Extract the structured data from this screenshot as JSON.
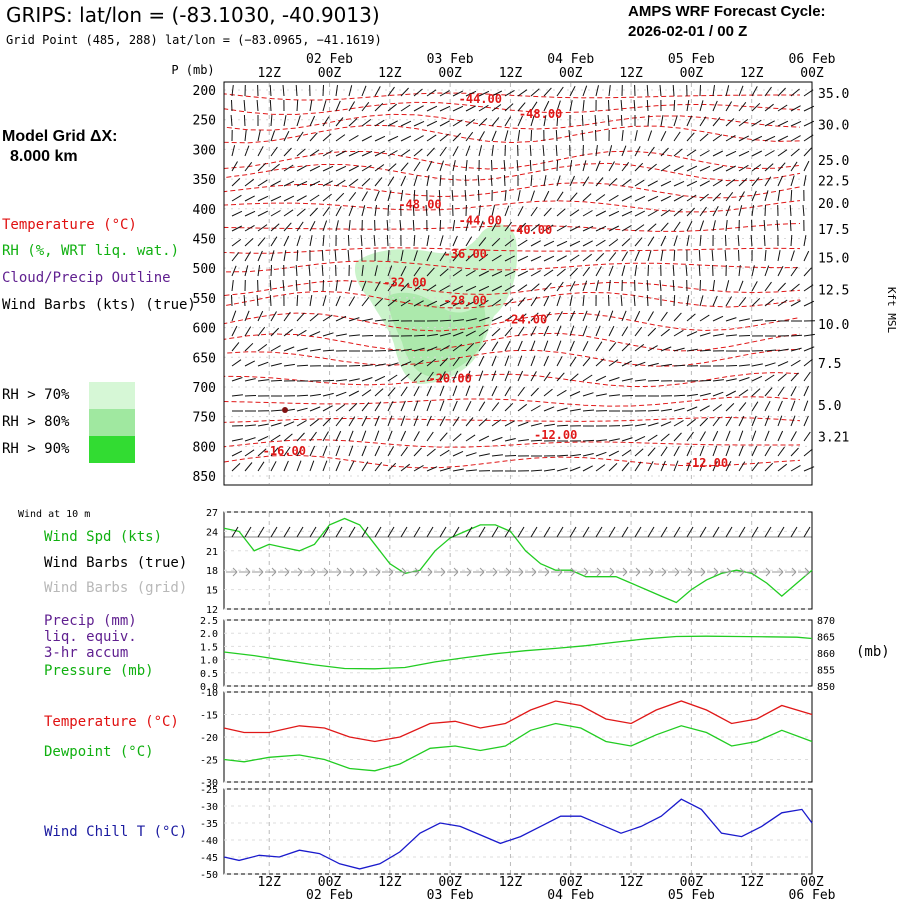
{
  "header": {
    "title": "GRIPS:  lat/lon = (-83.1030, -40.9013)",
    "subtitle": "Grid Point (485, 288) lat/lon = (−83.0965, −41.1619)",
    "cycle_label": "AMPS WRF Forecast Cycle:",
    "cycle_value": "2026-02-01 / 00  Z"
  },
  "sidebar": {
    "model_grid_label": "Model Grid ΔX:",
    "model_grid_value": "8.000 km",
    "legend_temperature": "Temperature (°C)",
    "legend_rh": "RH (%, WRT liq. wat.)",
    "legend_cloud": "Cloud/Precip Outline",
    "legend_wind": "Wind Barbs (kts) (true)",
    "rh_levels": [
      {
        "label": "RH > 70%",
        "color": "#d6f7d6"
      },
      {
        "label": "RH > 80%",
        "color": "#a0e8a0"
      },
      {
        "label": "RH > 90%",
        "color": "#32dc32"
      }
    ],
    "wind10m_title": "Wind at 10 m",
    "wind_spd_label": "Wind Spd (kts)",
    "wind_barbs_true_label": "Wind Barbs (true)",
    "wind_barbs_grid_label": "Wind Barbs (grid)",
    "precip_label": "Precip (mm)",
    "precip_sub1": "liq. equiv.",
    "precip_sub2": "3-hr accum",
    "pressure_label": "Pressure (mb)",
    "temp_label": "Temperature (°C)",
    "dewpoint_label": "Dewpoint (°C)",
    "windchill_label": "Wind Chill T (°C)"
  },
  "chart_data": [
    {
      "type": "contour",
      "name": "cross-section",
      "y_axis_label": "P (mb)",
      "right_axis_label": "Kft MSL",
      "pressure_levels": [
        "200",
        "250",
        "300",
        "350",
        "400",
        "450",
        "500",
        "550",
        "600",
        "650",
        "700",
        "750",
        "800",
        "850"
      ],
      "pressure_values": [
        200,
        250,
        300,
        350,
        400,
        450,
        500,
        550,
        600,
        650,
        700,
        750,
        800,
        850
      ],
      "height_ticks": [
        {
          "label": "35.0",
          "p": 205
        },
        {
          "label": "30.0",
          "p": 258
        },
        {
          "label": "25.0",
          "p": 318
        },
        {
          "label": "22.5",
          "p": 352
        },
        {
          "label": "20.0",
          "p": 390
        },
        {
          "label": "17.5",
          "p": 434
        },
        {
          "label": "15.0",
          "p": 482
        },
        {
          "label": "12.5",
          "p": 536
        },
        {
          "label": "10.0",
          "p": 594
        },
        {
          "label": "7.5",
          "p": 660
        },
        {
          "label": "5.0",
          "p": 730
        },
        {
          "label": "3.21",
          "p": 783
        }
      ],
      "time_ticks": [
        "12Z",
        "00Z",
        "12Z",
        "00Z",
        "12Z",
        "00Z",
        "12Z",
        "00Z",
        "12Z",
        "00Z"
      ],
      "tick_hours": [
        12,
        24,
        36,
        48,
        60,
        72,
        84,
        96,
        108,
        120
      ],
      "date_labels": [
        "02 Feb",
        "03 Feb",
        "04 Feb",
        "05 Feb",
        "06 Feb"
      ],
      "date_hours": [
        24,
        48,
        72,
        96,
        120
      ],
      "x_range_hours": [
        3,
        120
      ],
      "temperature_labels": [
        {
          "text": "-44.00",
          "hour": 54,
          "p": 215
        },
        {
          "text": "-48.00",
          "hour": 66,
          "p": 240
        },
        {
          "text": "-48.00",
          "hour": 42,
          "p": 393
        },
        {
          "text": "-44.00",
          "hour": 54,
          "p": 420
        },
        {
          "text": "-40.00",
          "hour": 64,
          "p": 436
        },
        {
          "text": "-36.00",
          "hour": 51,
          "p": 476
        },
        {
          "text": "-32.00",
          "hour": 39,
          "p": 524
        },
        {
          "text": "-28.00",
          "hour": 51,
          "p": 554
        },
        {
          "text": "-24.00",
          "hour": 63,
          "p": 586
        },
        {
          "text": "-20.00",
          "hour": 48,
          "p": 686
        },
        {
          "text": "-12.00",
          "hour": 69,
          "p": 781
        },
        {
          "text": "-16.00",
          "hour": 15,
          "p": 808
        },
        {
          "text": "-12.00",
          "hour": 99,
          "p": 828
        }
      ],
      "rh_region": "RH > 70% plume spanning approx. 02 Feb 00Z – 03 Feb 12Z, 450–700 mb"
    },
    {
      "type": "line",
      "name": "wind-speed-10m",
      "y_ticks": [
        "27",
        "24",
        "21",
        "18",
        "15",
        "12"
      ],
      "ylim": [
        12,
        27
      ],
      "x_hours": [
        3,
        6,
        9,
        12,
        15,
        18,
        21,
        24,
        27,
        30,
        33,
        36,
        39,
        42,
        45,
        48,
        51,
        54,
        57,
        60,
        63,
        66,
        69,
        72,
        75,
        78,
        81,
        84,
        87,
        90,
        93,
        96,
        99,
        102,
        105,
        108,
        111,
        114,
        117,
        120
      ],
      "series": [
        {
          "name": "Wind Spd",
          "color": "#22cc22",
          "values": [
            24.5,
            24,
            21,
            22,
            21.5,
            21,
            22,
            25,
            26,
            25,
            22,
            19,
            17.5,
            18,
            21,
            23,
            24,
            25,
            25,
            24,
            21,
            19,
            18,
            18,
            17,
            17,
            17,
            16,
            15,
            14,
            13,
            15,
            16.5,
            17.5,
            18,
            17.5,
            16,
            14,
            16,
            18
          ]
        }
      ]
    },
    {
      "type": "line",
      "name": "precip-pressure",
      "y_ticks_left": [
        "2.5",
        "2.0",
        "1.5",
        "1.0",
        "0.5",
        "0.0"
      ],
      "y_ticks_right": [
        "870",
        "865",
        "860",
        "855",
        "850"
      ],
      "right_unit": "(mb)",
      "ylim_left": [
        0,
        2.5
      ],
      "ylim_right": [
        850,
        870
      ],
      "x_hours": [
        3,
        9,
        15,
        21,
        27,
        33,
        39,
        45,
        51,
        57,
        63,
        69,
        75,
        81,
        87,
        93,
        99,
        105,
        111,
        117,
        120
      ],
      "series": [
        {
          "name": "Pressure",
          "color": "#22cc22",
          "values": [
            860.3,
            859.2,
            857.8,
            856.4,
            855.3,
            855.2,
            855.6,
            857.3,
            858.6,
            859.8,
            860.7,
            861.4,
            862.2,
            863.3,
            864.3,
            865,
            865.1,
            865,
            864.9,
            864.8,
            864.4
          ]
        }
      ]
    },
    {
      "type": "line",
      "name": "temperature-dewpoint",
      "y_ticks": [
        "-10",
        "-15",
        "-20",
        "-25",
        "-30"
      ],
      "ylim": [
        -30,
        -10
      ],
      "x_hours": [
        3,
        7,
        12,
        18,
        23,
        28,
        33,
        38,
        44,
        49,
        54,
        59,
        64,
        69,
        74,
        79,
        84,
        89,
        94,
        99,
        104,
        109,
        114,
        120
      ],
      "series": [
        {
          "name": "Temperature",
          "color": "#e01818",
          "values": [
            -18,
            -19,
            -19,
            -17.5,
            -18,
            -20,
            -21,
            -20,
            -17,
            -16.5,
            -18,
            -17,
            -14,
            -12,
            -13,
            -16,
            -17,
            -14,
            -12,
            -14,
            -17,
            -16,
            -13,
            -15
          ]
        },
        {
          "name": "Dewpoint",
          "color": "#22cc22",
          "values": [
            -25,
            -25.5,
            -24.5,
            -24,
            -25,
            -27,
            -27.5,
            -26,
            -22.5,
            -22,
            -23,
            -22,
            -18.5,
            -17,
            -18,
            -21,
            -22,
            -19.5,
            -17.5,
            -19,
            -22,
            -21,
            -18.5,
            -21
          ]
        }
      ]
    },
    {
      "type": "line",
      "name": "wind-chill",
      "y_ticks": [
        "-25",
        "-30",
        "-35",
        "-40",
        "-45",
        "-50"
      ],
      "ylim": [
        -50,
        -25
      ],
      "x_hours": [
        3,
        6,
        10,
        14,
        18,
        22,
        26,
        30,
        34,
        38,
        42,
        46,
        50,
        54,
        58,
        62,
        66,
        70,
        74,
        78,
        82,
        86,
        90,
        94,
        98,
        102,
        106,
        110,
        114,
        118,
        120
      ],
      "series": [
        {
          "name": "Wind Chill T",
          "color": "#1a1acc",
          "values": [
            -45,
            -46,
            -44.5,
            -45,
            -43,
            -44,
            -47,
            -48.5,
            -47,
            -43.5,
            -38,
            -35,
            -36,
            -38.5,
            -41,
            -39,
            -36,
            -33,
            -33,
            -35.5,
            -38,
            -36,
            -33,
            -28,
            -31,
            -38,
            -39,
            -36,
            -32,
            -31,
            -35
          ]
        }
      ]
    }
  ]
}
